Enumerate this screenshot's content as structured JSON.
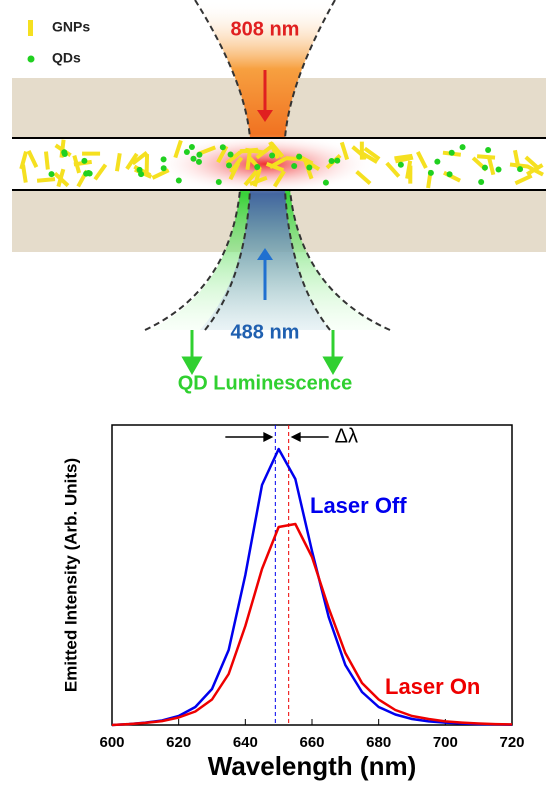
{
  "diagram": {
    "legend": [
      "GNPs",
      "QDs"
    ],
    "pump": "808 nm",
    "probe": "488 nm",
    "emission": "QD Luminescence"
  },
  "chart_data": {
    "type": "line",
    "x_label": "Wavelength (nm)",
    "y_label": "Emitted Intensity (Arb. Units)",
    "annotations": [
      "Δλ",
      "Laser Off",
      "Laser On"
    ],
    "x": [
      600,
      605,
      610,
      615,
      620,
      625,
      630,
      635,
      640,
      645,
      650,
      655,
      660,
      665,
      670,
      675,
      680,
      685,
      690,
      695,
      700,
      705,
      710,
      715,
      720
    ],
    "series": [
      {
        "name": "Laser Off",
        "color": "#0000ee",
        "values": [
          0,
          0.003,
          0.008,
          0.015,
          0.03,
          0.06,
          0.12,
          0.25,
          0.5,
          0.8,
          0.92,
          0.82,
          0.58,
          0.36,
          0.2,
          0.11,
          0.06,
          0.035,
          0.02,
          0.012,
          0.008,
          0.005,
          0.003,
          0.002,
          0.001
        ]
      },
      {
        "name": "Laser On",
        "color": "#ee0000",
        "values": [
          0,
          0.003,
          0.007,
          0.013,
          0.025,
          0.045,
          0.085,
          0.17,
          0.33,
          0.52,
          0.66,
          0.67,
          0.56,
          0.39,
          0.24,
          0.14,
          0.085,
          0.05,
          0.03,
          0.02,
          0.012,
          0.008,
          0.005,
          0.003,
          0.002
        ]
      }
    ],
    "reference_lines": [
      {
        "x": 649,
        "color": "#0000ee"
      },
      {
        "x": 653,
        "color": "#ee0000"
      }
    ],
    "xlim": [
      600,
      720
    ],
    "xticks": [
      600,
      620,
      640,
      660,
      680,
      700,
      720
    ],
    "ylim": [
      0,
      1
    ]
  }
}
